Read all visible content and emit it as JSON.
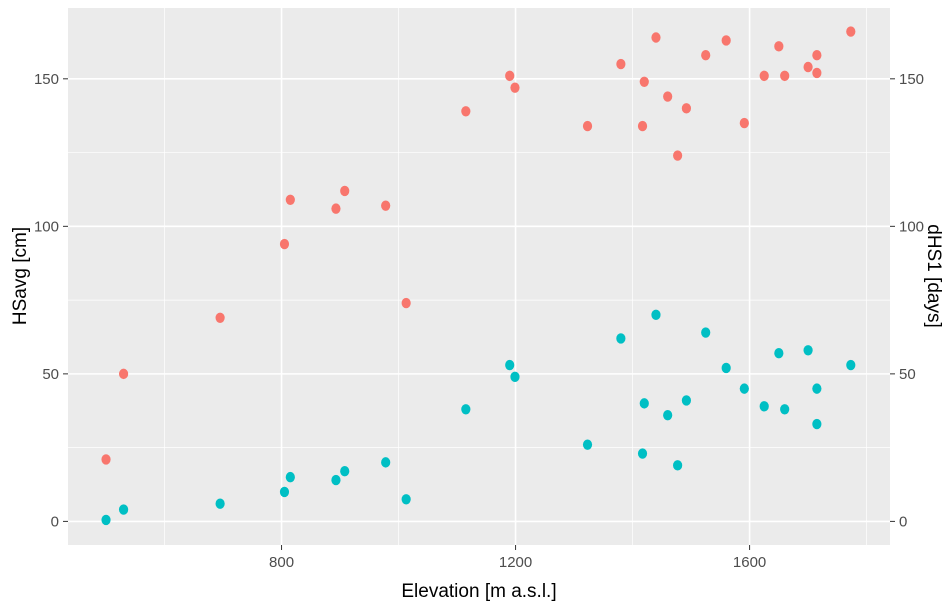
{
  "chart_data": {
    "type": "scatter",
    "title": "",
    "xlabel": "Elevation [m a.s.l.]",
    "ylabel_left": "HSavg [cm]",
    "ylabel_right": "dHS1 [days]",
    "xlim": [
      435,
      1840
    ],
    "ylim": [
      -8,
      174
    ],
    "x_ticks": [
      800,
      1200,
      1600
    ],
    "y_ticks": [
      0,
      50,
      100,
      150
    ],
    "grid": true,
    "legend": "none",
    "colors": {
      "panel_bg": "#ebebeb",
      "grid": "#ffffff",
      "axis_text": "#4d4d4d",
      "label_text": "#000000",
      "series_hsavg": "#f8766d",
      "series_dhs1": "#00bfc4"
    },
    "series": [
      {
        "axis": "left",
        "color": "#f8766d",
        "points": [
          [
            500,
            21
          ],
          [
            530,
            50
          ],
          [
            695,
            69
          ],
          [
            805,
            94
          ],
          [
            815,
            109
          ],
          [
            893,
            106
          ],
          [
            908,
            112
          ],
          [
            978,
            107
          ],
          [
            1013,
            74
          ],
          [
            1115,
            139
          ],
          [
            1190,
            151
          ],
          [
            1199,
            147
          ],
          [
            1323,
            134
          ],
          [
            1380,
            155
          ],
          [
            1417,
            134
          ],
          [
            1420,
            149
          ],
          [
            1440,
            164
          ],
          [
            1460,
            144
          ],
          [
            1477,
            124
          ],
          [
            1492,
            140
          ],
          [
            1525,
            158
          ],
          [
            1560,
            163
          ],
          [
            1591,
            135
          ],
          [
            1625,
            151
          ],
          [
            1650,
            161
          ],
          [
            1660,
            151
          ],
          [
            1700,
            154
          ],
          [
            1715,
            158
          ],
          [
            1715,
            152
          ],
          [
            1773,
            166
          ]
        ]
      },
      {
        "axis": "right",
        "color": "#00bfc4",
        "points": [
          [
            500,
            0.5
          ],
          [
            530,
            4
          ],
          [
            695,
            6
          ],
          [
            805,
            10
          ],
          [
            815,
            15
          ],
          [
            893,
            14
          ],
          [
            908,
            17
          ],
          [
            978,
            20
          ],
          [
            1013,
            7.5
          ],
          [
            1115,
            38
          ],
          [
            1190,
            53
          ],
          [
            1199,
            49
          ],
          [
            1323,
            26
          ],
          [
            1380,
            62
          ],
          [
            1417,
            23
          ],
          [
            1420,
            40
          ],
          [
            1440,
            70
          ],
          [
            1460,
            36
          ],
          [
            1477,
            19
          ],
          [
            1492,
            41
          ],
          [
            1525,
            64
          ],
          [
            1560,
            52
          ],
          [
            1591,
            45
          ],
          [
            1625,
            39
          ],
          [
            1650,
            57
          ],
          [
            1660,
            38
          ],
          [
            1700,
            58
          ],
          [
            1715,
            45
          ],
          [
            1715,
            33
          ],
          [
            1773,
            53
          ]
        ]
      }
    ]
  }
}
